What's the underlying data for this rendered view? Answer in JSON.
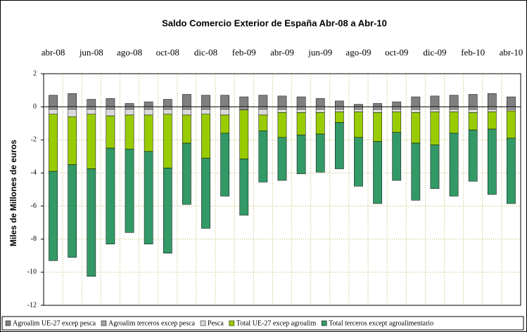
{
  "chart_data": {
    "type": "stacked_bar",
    "title": "Saldo Comercio Exterior de España Abr-08 a Abr-10",
    "y_label": "Miles de Millones de euros",
    "categories": [
      "abr-08",
      null,
      "jun-08",
      null,
      "ago-08",
      null,
      "oct-08",
      null,
      "dic-08",
      null,
      "feb-09",
      null,
      "abr-09",
      null,
      "jun-09",
      null,
      "ago-09",
      null,
      "oct-09",
      null,
      "dic-09",
      null,
      "feb-10",
      null,
      "abr-10"
    ],
    "ylim": [
      -12,
      2
    ],
    "yticks": [
      -12,
      -10,
      -8,
      -6,
      -4,
      -2,
      0,
      2
    ],
    "grid": true,
    "series": [
      {
        "name": "Agroalim UE-27 excep pesca",
        "color": "#808080",
        "values": [
          0.7,
          0.8,
          0.45,
          0.5,
          0.2,
          0.3,
          0.45,
          0.75,
          0.7,
          0.7,
          0.6,
          0.7,
          0.65,
          0.6,
          0.5,
          0.35,
          0.15,
          0.2,
          0.3,
          0.6,
          0.65,
          0.7,
          0.75,
          0.8,
          0.6
        ]
      },
      {
        "name": "Agroalim terceros excep pesca",
        "color": "#a6a6a6",
        "values": [
          -0.15,
          -0.15,
          -0.15,
          -0.15,
          -0.15,
          -0.15,
          -0.15,
          -0.15,
          -0.15,
          -0.15,
          -0.15,
          -0.15,
          -0.15,
          -0.15,
          -0.15,
          -0.15,
          -0.15,
          -0.15,
          -0.15,
          -0.15,
          -0.15,
          -0.15,
          -0.15,
          -0.15,
          -0.15
        ]
      },
      {
        "name": "Pesca",
        "color": "#d9d9d9",
        "values": [
          -0.3,
          -0.45,
          -0.3,
          -0.4,
          -0.35,
          -0.35,
          -0.3,
          -0.35,
          -0.3,
          -0.35,
          -0.05,
          -0.35,
          -0.2,
          -0.2,
          -0.2,
          -0.15,
          -0.15,
          -0.2,
          -0.15,
          -0.2,
          -0.15,
          -0.15,
          -0.2,
          -0.15,
          -0.1
        ]
      },
      {
        "name": "Total UE-27 excep agroalim",
        "color": "#99cc00",
        "values": [
          -3.45,
          -2.9,
          -3.3,
          -1.95,
          -2.05,
          -2.2,
          -3.25,
          -1.7,
          -2.65,
          -1.1,
          -2.95,
          -0.95,
          -1.5,
          -1.35,
          -1.3,
          -0.65,
          -1.55,
          -1.75,
          -1.25,
          -1.85,
          -2.0,
          -1.3,
          -1.05,
          -1.05,
          -1.65
        ]
      },
      {
        "name": "Total terceros except agroalimentario",
        "color": "#339966",
        "values": [
          -5.4,
          -5.6,
          -6.5,
          -5.8,
          -5.05,
          -5.6,
          -5.15,
          -3.7,
          -4.25,
          -3.8,
          -3.4,
          -3.1,
          -2.6,
          -2.35,
          -2.3,
          -2.8,
          -2.95,
          -3.75,
          -2.9,
          -3.45,
          -2.65,
          -3.8,
          -3.1,
          -3.95,
          -3.95
        ]
      }
    ]
  }
}
